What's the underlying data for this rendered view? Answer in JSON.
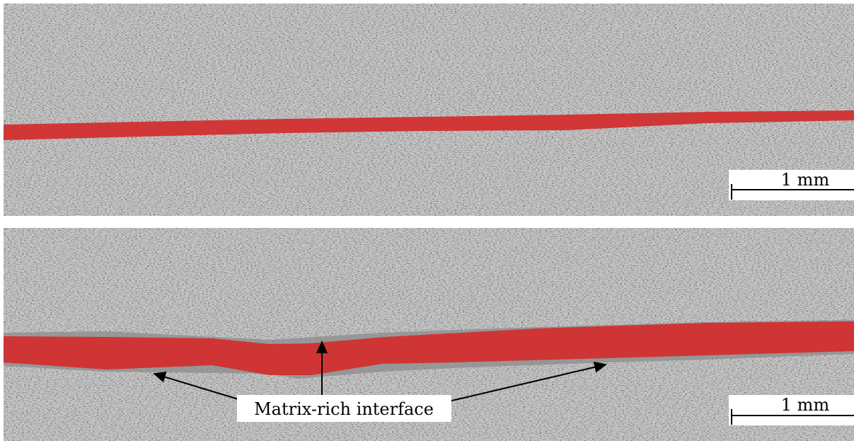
{
  "panels": [
    {
      "scale_bar": "1 mm"
    },
    {
      "scale_bar": "1 mm",
      "annotation": "Matrix-rich interface"
    }
  ]
}
